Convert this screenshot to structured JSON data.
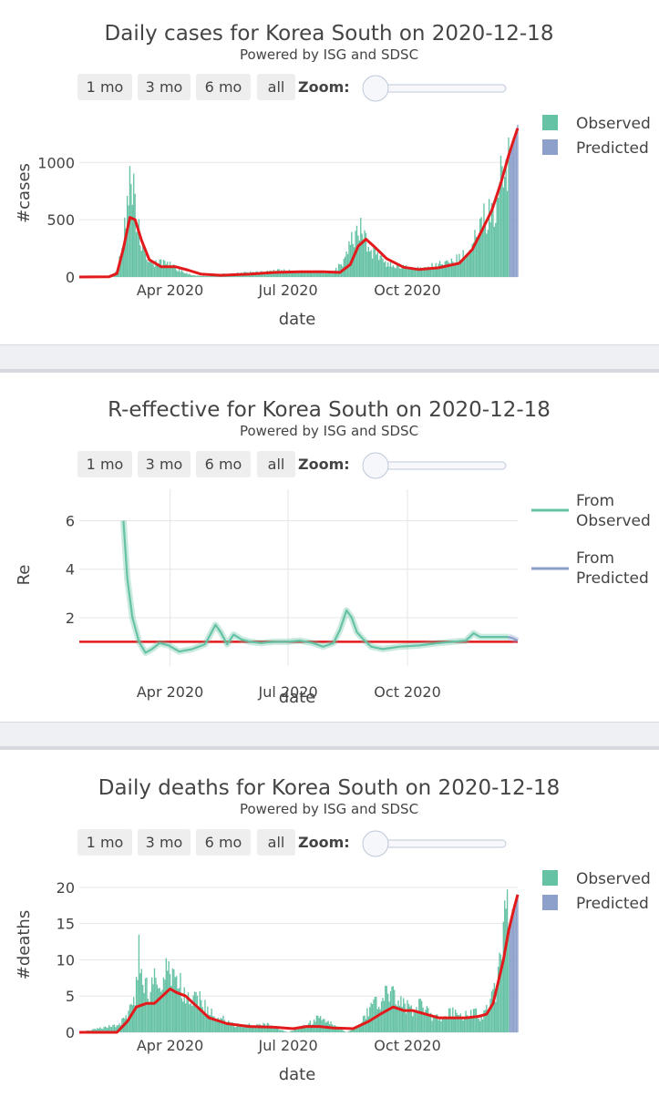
{
  "colors": {
    "observed": "#66c2a5",
    "predicted": "#8da0cb",
    "trend": "#e31a1c",
    "grid": "#e6e6e6",
    "button_bg": "#eeeeee"
  },
  "controls": {
    "buttons": [
      "1 mo",
      "3 mo",
      "6 mo",
      "all"
    ],
    "zoom_label": "Zoom:"
  },
  "chart_data": [
    {
      "type": "bar",
      "title": "Daily cases for Korea South on 2020-12-18",
      "subtitle": "Powered by ISG and SDSC",
      "xlabel": "date",
      "ylabel": "#cases",
      "xlim": [
        "2020-01-22",
        "2020-12-25"
      ],
      "ylim": [
        0,
        1400
      ],
      "x_ticks": [
        "2020-04-01",
        "2020-07-01",
        "2020-10-01"
      ],
      "x_tick_labels": [
        "Apr 2020",
        "Jul 2020",
        "Oct 2020"
      ],
      "y_ticks": [
        0,
        500,
        1000
      ],
      "y_tick_labels": [
        "0",
        "500",
        "1000"
      ],
      "legend": [
        "Observed",
        "Predicted"
      ],
      "legend_position": "top-right",
      "predicted_range": [
        "2020-12-19",
        "2020-12-25"
      ],
      "series": [
        {
          "name": "Observed",
          "x": [
            "2020-01-22",
            "2020-02-10",
            "2020-02-18",
            "2020-02-22",
            "2020-02-25",
            "2020-02-29",
            "2020-03-03",
            "2020-03-06",
            "2020-03-10",
            "2020-03-14",
            "2020-03-18",
            "2020-03-24",
            "2020-03-31",
            "2020-04-10",
            "2020-04-20",
            "2020-05-01",
            "2020-05-10",
            "2020-05-20",
            "2020-05-28",
            "2020-06-10",
            "2020-06-25",
            "2020-07-10",
            "2020-07-25",
            "2020-08-05",
            "2020-08-14",
            "2020-08-18",
            "2020-08-23",
            "2020-08-27",
            "2020-09-01",
            "2020-09-07",
            "2020-09-15",
            "2020-09-25",
            "2020-10-05",
            "2020-10-15",
            "2020-10-25",
            "2020-11-05",
            "2020-11-15",
            "2020-11-22",
            "2020-11-28",
            "2020-12-04",
            "2020-12-10",
            "2020-12-14",
            "2020-12-16",
            "2020-12-18"
          ],
          "values": [
            0,
            0,
            15,
            140,
            400,
            700,
            850,
            550,
            250,
            130,
            110,
            120,
            110,
            50,
            12,
            8,
            25,
            25,
            40,
            45,
            55,
            50,
            45,
            40,
            150,
            290,
            380,
            420,
            270,
            180,
            120,
            90,
            70,
            80,
            110,
            130,
            210,
            320,
            500,
            560,
            680,
            1030,
            1080,
            1060
          ]
        },
        {
          "name": "Predicted",
          "x": [
            "2020-12-19",
            "2020-12-21",
            "2020-12-23",
            "2020-12-25"
          ],
          "values": [
            1100,
            1180,
            1250,
            1330
          ]
        },
        {
          "name": "Trend",
          "x": [
            "2020-01-22",
            "2020-02-14",
            "2020-02-20",
            "2020-02-25",
            "2020-03-01",
            "2020-03-05",
            "2020-03-10",
            "2020-03-16",
            "2020-03-25",
            "2020-04-05",
            "2020-04-15",
            "2020-04-25",
            "2020-05-10",
            "2020-06-01",
            "2020-06-20",
            "2020-07-10",
            "2020-07-28",
            "2020-08-10",
            "2020-08-18",
            "2020-08-24",
            "2020-08-30",
            "2020-09-05",
            "2020-09-15",
            "2020-09-28",
            "2020-10-10",
            "2020-10-25",
            "2020-11-10",
            "2020-11-20",
            "2020-11-28",
            "2020-12-05",
            "2020-12-12",
            "2020-12-18",
            "2020-12-22",
            "2020-12-25"
          ],
          "values": [
            0,
            2,
            30,
            250,
            520,
            500,
            320,
            150,
            90,
            90,
            60,
            25,
            15,
            25,
            40,
            45,
            45,
            40,
            110,
            270,
            330,
            270,
            160,
            85,
            65,
            80,
            120,
            240,
            420,
            580,
            820,
            1060,
            1200,
            1300
          ]
        }
      ]
    },
    {
      "type": "line",
      "title": "R-effective for Korea South on 2020-12-18",
      "subtitle": "Powered by ISG and SDSC",
      "xlabel": "date",
      "ylabel": "Re",
      "xlim": [
        "2020-01-22",
        "2020-12-25"
      ],
      "ylim": [
        0,
        7.3
      ],
      "x_ticks": [
        "2020-04-01",
        "2020-07-01",
        "2020-10-01"
      ],
      "x_tick_labels": [
        "Apr 2020",
        "Jul 2020",
        "Oct 2020"
      ],
      "y_ticks": [
        2,
        4,
        6
      ],
      "y_tick_labels": [
        "2",
        "4",
        "6"
      ],
      "grid": true,
      "reference_line": 1,
      "legend": [
        "From Observed",
        "From Predicted"
      ],
      "legend_position": "top-right",
      "series": [
        {
          "name": "From Observed",
          "x": [
            "2020-02-25",
            "2020-02-28",
            "2020-03-03",
            "2020-03-08",
            "2020-03-13",
            "2020-03-18",
            "2020-03-24",
            "2020-03-31",
            "2020-04-08",
            "2020-04-18",
            "2020-04-28",
            "2020-05-06",
            "2020-05-10",
            "2020-05-15",
            "2020-05-20",
            "2020-05-26",
            "2020-06-02",
            "2020-06-10",
            "2020-06-20",
            "2020-06-30",
            "2020-07-10",
            "2020-07-20",
            "2020-07-28",
            "2020-08-05",
            "2020-08-10",
            "2020-08-15",
            "2020-08-19",
            "2020-08-23",
            "2020-08-28",
            "2020-09-03",
            "2020-09-12",
            "2020-09-25",
            "2020-10-10",
            "2020-10-25",
            "2020-11-05",
            "2020-11-15",
            "2020-11-21",
            "2020-11-26",
            "2020-12-02",
            "2020-12-10",
            "2020-12-18"
          ],
          "values": [
            6.0,
            3.6,
            2.0,
            1.0,
            0.55,
            0.7,
            0.95,
            0.85,
            0.6,
            0.7,
            0.9,
            1.7,
            1.4,
            0.9,
            1.3,
            1.1,
            1.0,
            0.95,
            1.0,
            1.0,
            1.05,
            0.95,
            0.8,
            0.95,
            1.5,
            2.3,
            2.0,
            1.4,
            1.1,
            0.8,
            0.7,
            0.8,
            0.85,
            0.95,
            1.0,
            1.05,
            1.35,
            1.2,
            1.2,
            1.2,
            1.2
          ]
        },
        {
          "name": "From Predicted",
          "x": [
            "2020-12-18",
            "2020-12-21",
            "2020-12-25"
          ],
          "values": [
            1.2,
            1.15,
            1.05
          ]
        }
      ]
    },
    {
      "type": "bar",
      "title": "Daily deaths for Korea South on 2020-12-18",
      "subtitle": "Powered by ISG and SDSC",
      "xlabel": "date",
      "ylabel": "#deaths",
      "xlim": [
        "2020-01-22",
        "2020-12-25"
      ],
      "ylim": [
        0,
        22
      ],
      "x_ticks": [
        "2020-04-01",
        "2020-07-01",
        "2020-10-01"
      ],
      "x_tick_labels": [
        "Apr 2020",
        "Jul 2020",
        "Oct 2020"
      ],
      "y_ticks": [
        0,
        5,
        10,
        15,
        20
      ],
      "y_tick_labels": [
        "0",
        "5",
        "10",
        "15",
        "20"
      ],
      "legend": [
        "Observed",
        "Predicted"
      ],
      "legend_position": "top-right",
      "predicted_range": [
        "2020-12-19",
        "2020-12-25"
      ],
      "series": [
        {
          "name": "Observed",
          "x": [
            "2020-01-22",
            "2020-02-20",
            "2020-02-28",
            "2020-03-05",
            "2020-03-08",
            "2020-03-12",
            "2020-03-16",
            "2020-03-20",
            "2020-03-25",
            "2020-03-30",
            "2020-04-04",
            "2020-04-10",
            "2020-04-16",
            "2020-04-22",
            "2020-04-30",
            "2020-05-10",
            "2020-05-20",
            "2020-06-01",
            "2020-06-15",
            "2020-07-01",
            "2020-07-15",
            "2020-07-25",
            "2020-08-05",
            "2020-08-15",
            "2020-08-25",
            "2020-09-01",
            "2020-09-07",
            "2020-09-14",
            "2020-09-21",
            "2020-09-28",
            "2020-10-05",
            "2020-10-12",
            "2020-10-20",
            "2020-10-28",
            "2020-11-05",
            "2020-11-12",
            "2020-11-20",
            "2020-11-27",
            "2020-12-03",
            "2020-12-08",
            "2020-12-12",
            "2020-12-15",
            "2020-12-17",
            "2020-12-18"
          ],
          "values": [
            0,
            1,
            2,
            5,
            11,
            7,
            5,
            7,
            6,
            9,
            8,
            6,
            4,
            5,
            3,
            2,
            1,
            1,
            1,
            0,
            1,
            2,
            1,
            0,
            1,
            3,
            4,
            5,
            5,
            4,
            3,
            4,
            2,
            2,
            3,
            2,
            3,
            2,
            4,
            6,
            11,
            15,
            22,
            14
          ]
        },
        {
          "name": "Predicted",
          "x": [
            "2020-12-19",
            "2020-12-21",
            "2020-12-23",
            "2020-12-25"
          ],
          "values": [
            15,
            17,
            18,
            19
          ]
        },
        {
          "name": "Trend",
          "x": [
            "2020-01-22",
            "2020-02-20",
            "2020-02-28",
            "2020-03-06",
            "2020-03-14",
            "2020-03-20",
            "2020-03-26",
            "2020-04-01",
            "2020-04-06",
            "2020-04-13",
            "2020-04-22",
            "2020-05-01",
            "2020-05-15",
            "2020-06-01",
            "2020-06-20",
            "2020-07-05",
            "2020-07-15",
            "2020-07-25",
            "2020-08-05",
            "2020-08-20",
            "2020-09-01",
            "2020-09-10",
            "2020-09-20",
            "2020-09-28",
            "2020-10-05",
            "2020-10-15",
            "2020-10-25",
            "2020-11-05",
            "2020-11-15",
            "2020-11-25",
            "2020-12-01",
            "2020-12-06",
            "2020-12-10",
            "2020-12-14",
            "2020-12-18",
            "2020-12-22",
            "2020-12-25"
          ],
          "values": [
            0,
            0,
            1.5,
            3.5,
            4,
            4,
            5,
            6,
            5.5,
            5,
            3.5,
            2,
            1.2,
            0.8,
            0.7,
            0.5,
            0.8,
            0.8,
            0.6,
            0.5,
            1.5,
            2.5,
            3.5,
            3,
            3,
            2.5,
            2,
            2,
            2,
            2.2,
            2.5,
            4,
            7,
            10,
            14,
            17,
            19
          ]
        }
      ]
    }
  ]
}
